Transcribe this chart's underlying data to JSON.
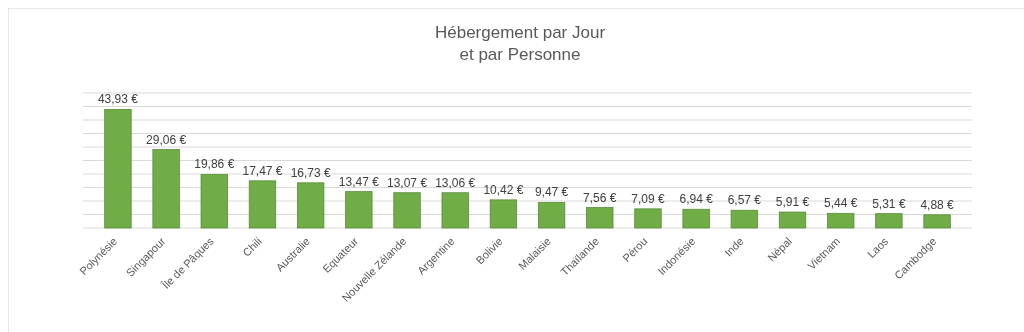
{
  "chart_data": {
    "type": "bar",
    "title": "Hébergement par Jour\net par Personne",
    "categories": [
      "Polynésie",
      "Singapour",
      "Île de Pâques",
      "Chili",
      "Australie",
      "Equateur",
      "Nouvelle Zélande",
      "Argentine",
      "Bolivie",
      "Malaisie",
      "Thaïlande",
      "Pérou",
      "Indonésie",
      "Inde",
      "Népal",
      "Vietnam",
      "Laos",
      "Cambodge"
    ],
    "values": [
      43.93,
      29.06,
      19.86,
      17.47,
      16.73,
      13.47,
      13.07,
      13.06,
      10.42,
      9.47,
      7.56,
      7.09,
      6.94,
      6.57,
      5.91,
      5.44,
      5.31,
      4.88
    ],
    "value_labels": [
      "43,93 €",
      "29,06 €",
      "19,86 €",
      "17,47 €",
      "16,73 €",
      "13,47 €",
      "13,07 €",
      "13,06 €",
      "10,42 €",
      "9,47 €",
      "7,56 €",
      "7,09 €",
      "6,94 €",
      "6,57 €",
      "5,91 €",
      "5,44 €",
      "5,31 €",
      "4,88 €"
    ],
    "color": "#70ad47",
    "ylim": [
      0,
      50
    ],
    "yticks": [
      {
        "value": 0,
        "label": null
      },
      {
        "value": 5,
        "label": null
      },
      {
        "value": 10,
        "label": null
      },
      {
        "value": 15,
        "label": null
      },
      {
        "value": 20,
        "label": null
      },
      {
        "value": 25,
        "label": null
      },
      {
        "value": 30,
        "label": null
      },
      {
        "value": 35,
        "label": null
      },
      {
        "value": 40,
        "label": null
      },
      {
        "value": 45,
        "label": null
      },
      {
        "value": 50,
        "label": null
      }
    ],
    "grid": "y",
    "tick_labels": "x"
  }
}
